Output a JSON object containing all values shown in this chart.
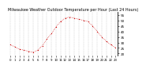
{
  "title": "Milwaukee Weather Outdoor Temperature per Hour (Last 24 Hours)",
  "hours": [
    0,
    1,
    2,
    3,
    4,
    5,
    6,
    7,
    8,
    9,
    10,
    11,
    12,
    13,
    14,
    15,
    16,
    17,
    18,
    19,
    20,
    21,
    22,
    23
  ],
  "temps": [
    28,
    26,
    24,
    23,
    22,
    21,
    23,
    27,
    33,
    38,
    44,
    49,
    52,
    53,
    52,
    51,
    50,
    49,
    45,
    40,
    35,
    31,
    28,
    25
  ],
  "line_color": "#cc0000",
  "marker_color": "#cc0000",
  "bg_color": "#ffffff",
  "grid_color": "#bbbbbb",
  "ylim": [
    18,
    58
  ],
  "yticks": [
    20,
    25,
    30,
    35,
    40,
    45,
    50,
    55
  ],
  "ylabel_fontsize": 3.0,
  "xlabel_fontsize": 2.8,
  "title_fontsize": 3.5
}
